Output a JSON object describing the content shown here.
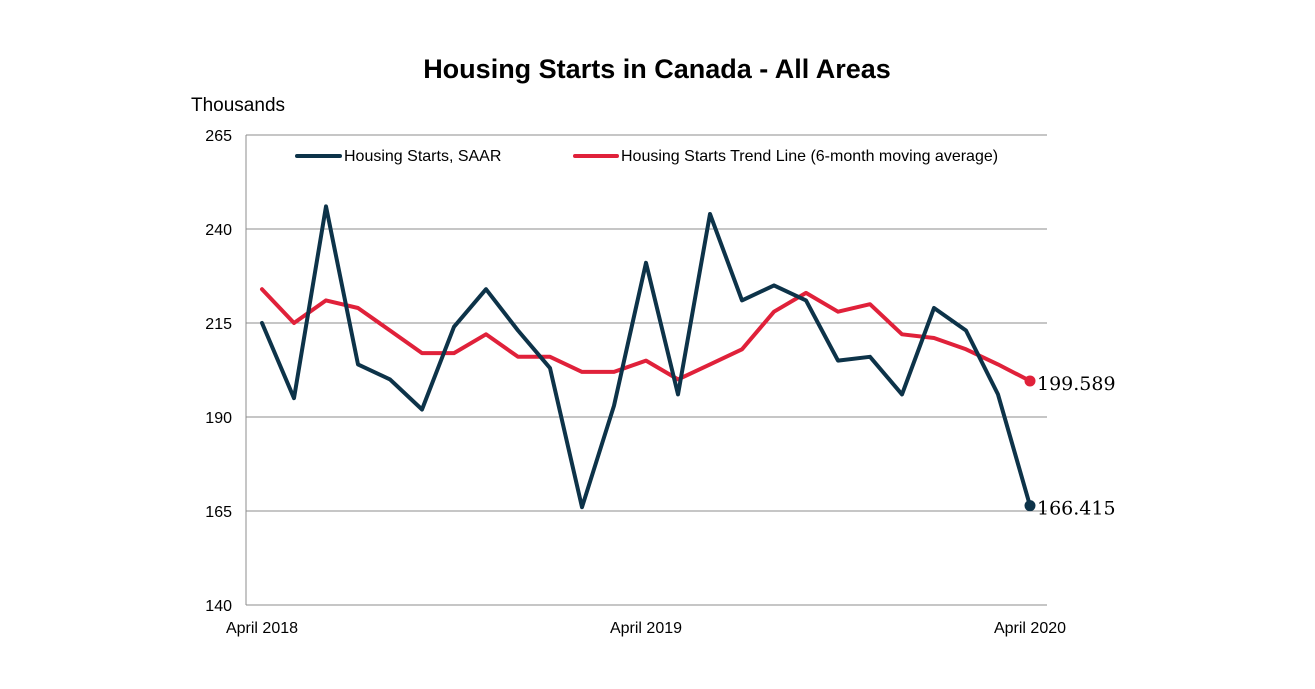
{
  "chart_data": {
    "type": "line",
    "title": "Housing Starts in Canada - All Areas",
    "ylabel": "Thousands",
    "xlabel": "",
    "ylim": [
      140,
      265
    ],
    "yticks": [
      140,
      165,
      190,
      215,
      240,
      265
    ],
    "grid": true,
    "legend_position": "top",
    "x_tick_labels": [
      {
        "index": 0,
        "label": "April 2018"
      },
      {
        "index": 12,
        "label": "April 2019"
      },
      {
        "index": 24,
        "label": "April 2020"
      }
    ],
    "series": [
      {
        "name": "Housing Starts, SAAR",
        "color": "#0d3349",
        "values": [
          215,
          195,
          246,
          204,
          200,
          192,
          214,
          224,
          213,
          203,
          166,
          193,
          231,
          196,
          244,
          221,
          225,
          221,
          205,
          206,
          196,
          219,
          213,
          196,
          166.415
        ],
        "end_label": "166.415"
      },
      {
        "name": "Housing Starts Trend Line (6-month moving average)",
        "color": "#e0213a",
        "values": [
          224,
          215,
          221,
          219,
          213,
          207,
          207,
          212,
          206,
          206,
          202,
          202,
          205,
          200,
          204,
          208,
          218,
          223,
          218,
          220,
          212,
          211,
          208,
          204,
          199.589
        ],
        "end_label": "199.589"
      }
    ]
  }
}
